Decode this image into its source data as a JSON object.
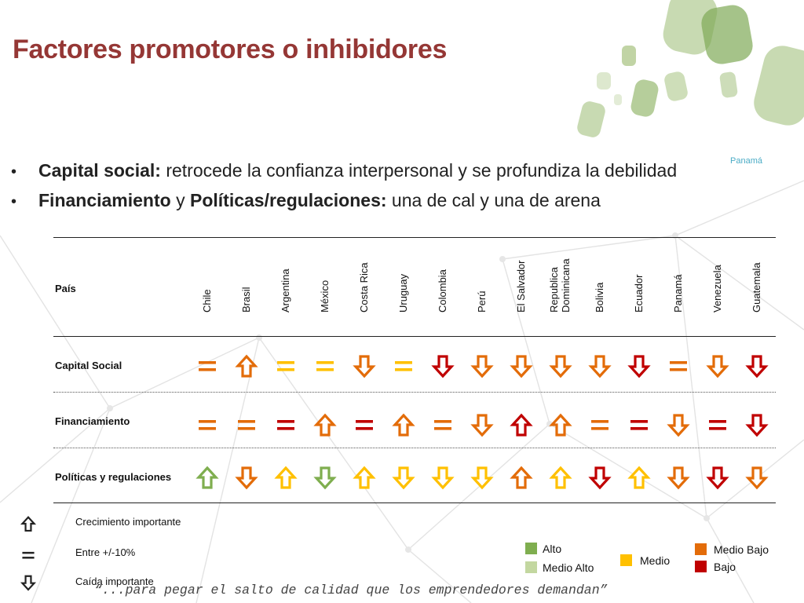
{
  "slide": {
    "title": "Factores promotores o inhibidores",
    "faded_label": "Panamá",
    "bullets": [
      {
        "bold": "Capital social:",
        "text": " retrocede la confianza interpersonal y se profundiza la debilidad"
      },
      {
        "bold": "Financiamiento",
        "mid": " y ",
        "bold2": "Políticas/regulaciones:",
        "text": " una de cal y una de arena"
      }
    ],
    "quote": "“...para pegar el salto de calidad que los emprendedores demandan”"
  },
  "table": {
    "header_label": "País",
    "countries": [
      "Chile",
      "Brasil",
      "Argentina",
      "México",
      "Costa Rica",
      "Uruguay",
      "Colombia",
      "Perú",
      "El Salvador",
      "Republica\nDominicana",
      "Bolivia",
      "Ecuador",
      "Panamá",
      "Venezuela",
      "Guatemala"
    ],
    "rows": [
      {
        "label": "Capital Social",
        "cells": [
          [
            "eq",
            "medio_bajo"
          ],
          [
            "up",
            "medio_bajo"
          ],
          [
            "eq",
            "medio"
          ],
          [
            "eq",
            "medio"
          ],
          [
            "down",
            "medio_bajo"
          ],
          [
            "eq",
            "medio"
          ],
          [
            "down",
            "bajo"
          ],
          [
            "down",
            "medio_bajo"
          ],
          [
            "down",
            "medio_bajo"
          ],
          [
            "down",
            "medio_bajo"
          ],
          [
            "down",
            "medio_bajo"
          ],
          [
            "down",
            "bajo"
          ],
          [
            "eq",
            "medio_bajo"
          ],
          [
            "down",
            "medio_bajo"
          ],
          [
            "down",
            "bajo"
          ]
        ]
      },
      {
        "label": "Financiamiento",
        "cells": [
          [
            "eq",
            "medio_bajo"
          ],
          [
            "eq",
            "medio_bajo"
          ],
          [
            "eq",
            "bajo"
          ],
          [
            "up",
            "medio_bajo"
          ],
          [
            "eq",
            "bajo"
          ],
          [
            "up",
            "medio_bajo"
          ],
          [
            "eq",
            "medio_bajo"
          ],
          [
            "down",
            "medio_bajo"
          ],
          [
            "up",
            "bajo"
          ],
          [
            "up",
            "medio_bajo"
          ],
          [
            "eq",
            "medio_bajo"
          ],
          [
            "eq",
            "bajo"
          ],
          [
            "down",
            "medio_bajo"
          ],
          [
            "eq",
            "bajo"
          ],
          [
            "down",
            "bajo"
          ]
        ]
      },
      {
        "label": "Políticas y regulaciones",
        "cells": [
          [
            "up",
            "alto"
          ],
          [
            "down",
            "medio_bajo"
          ],
          [
            "up",
            "medio"
          ],
          [
            "down",
            "alto"
          ],
          [
            "up",
            "medio"
          ],
          [
            "down",
            "medio"
          ],
          [
            "down",
            "medio"
          ],
          [
            "down",
            "medio"
          ],
          [
            "up",
            "medio_bajo"
          ],
          [
            "up",
            "medio"
          ],
          [
            "down",
            "bajo"
          ],
          [
            "up",
            "medio"
          ],
          [
            "down",
            "medio_bajo"
          ],
          [
            "down",
            "bajo"
          ],
          [
            "down",
            "medio_bajo"
          ]
        ]
      }
    ]
  },
  "symbol_legend": [
    {
      "symbol": "up",
      "text": "Crecimiento importante"
    },
    {
      "symbol": "eq",
      "text": "Entre +/-10%"
    },
    {
      "symbol": "down",
      "text": "Caída importante"
    }
  ],
  "color_legend": [
    {
      "key": "alto",
      "label": "Alto"
    },
    {
      "key": "medio_alto",
      "label": "Medio Alto"
    },
    {
      "key": "medio",
      "label": "Medio"
    },
    {
      "key": "medio_bajo",
      "label": "Medio Bajo"
    },
    {
      "key": "bajo",
      "label": "Bajo"
    }
  ],
  "colors": {
    "title": "#953735",
    "alto": "#7fae4f",
    "medio_alto": "#c3d7a0",
    "medio": "#ffc000",
    "medio_bajo": "#e36c09",
    "bajo": "#c00000",
    "legend_symbol": "#222222"
  }
}
